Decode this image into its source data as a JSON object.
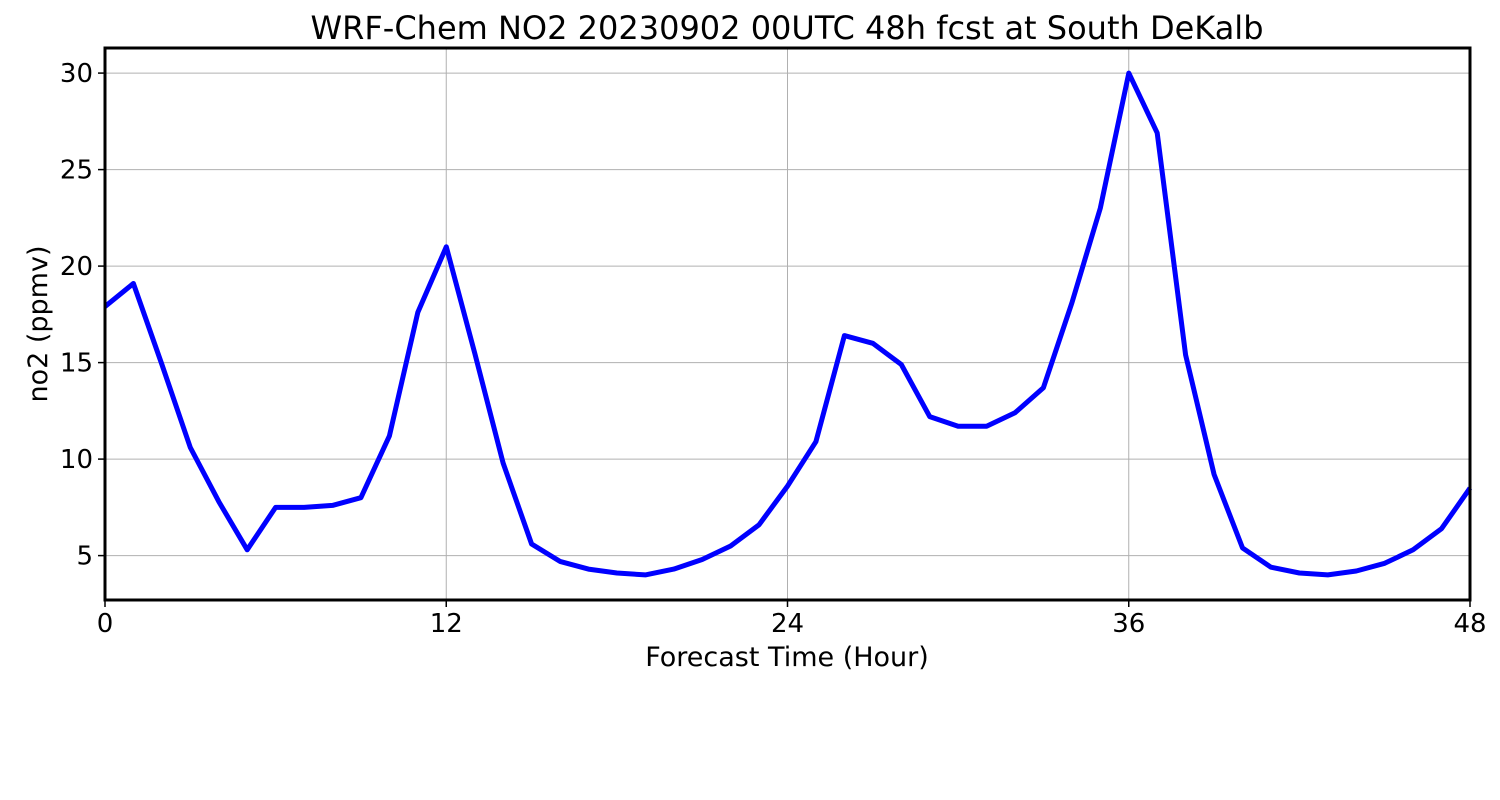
{
  "chart_data": {
    "type": "line",
    "title": "WRF-Chem NO2  20230902 00UTC 48h fcst at South DeKalb",
    "xlabel": "Forecast Time (Hour)",
    "ylabel": "no2  (ppmv)",
    "xlim": [
      0,
      48
    ],
    "ylim": [
      2.7,
      31.3
    ],
    "xticks": [
      0,
      12,
      24,
      36,
      48
    ],
    "yticks": [
      5,
      10,
      15,
      20,
      25,
      30
    ],
    "grid": true,
    "series_color": "#0000ff",
    "series": [
      {
        "x": [
          0,
          1,
          2,
          3,
          4,
          5,
          6,
          7,
          8,
          9,
          10,
          11,
          12,
          13,
          14,
          15,
          16,
          17,
          18,
          19,
          20,
          21,
          22,
          23,
          24,
          25,
          26,
          27,
          28,
          29,
          30,
          31,
          32,
          33,
          34,
          35,
          36,
          37,
          38,
          39,
          40,
          41,
          42,
          43,
          44,
          45,
          46,
          47,
          48
        ],
        "values": [
          17.9,
          19.1,
          14.9,
          10.6,
          7.8,
          5.3,
          7.5,
          7.5,
          7.6,
          8.0,
          11.2,
          17.6,
          21.0,
          15.5,
          9.8,
          5.6,
          4.7,
          4.3,
          4.1,
          4.0,
          4.3,
          4.8,
          5.5,
          6.6,
          8.6,
          10.9,
          16.4,
          16.0,
          14.9,
          12.2,
          11.7,
          11.7,
          12.4,
          13.7,
          18.1,
          23.0,
          30.0,
          26.9,
          15.4,
          9.2,
          5.4,
          4.4,
          4.1,
          4.0,
          4.2,
          4.6,
          5.3,
          6.4,
          8.5
        ]
      }
    ]
  }
}
